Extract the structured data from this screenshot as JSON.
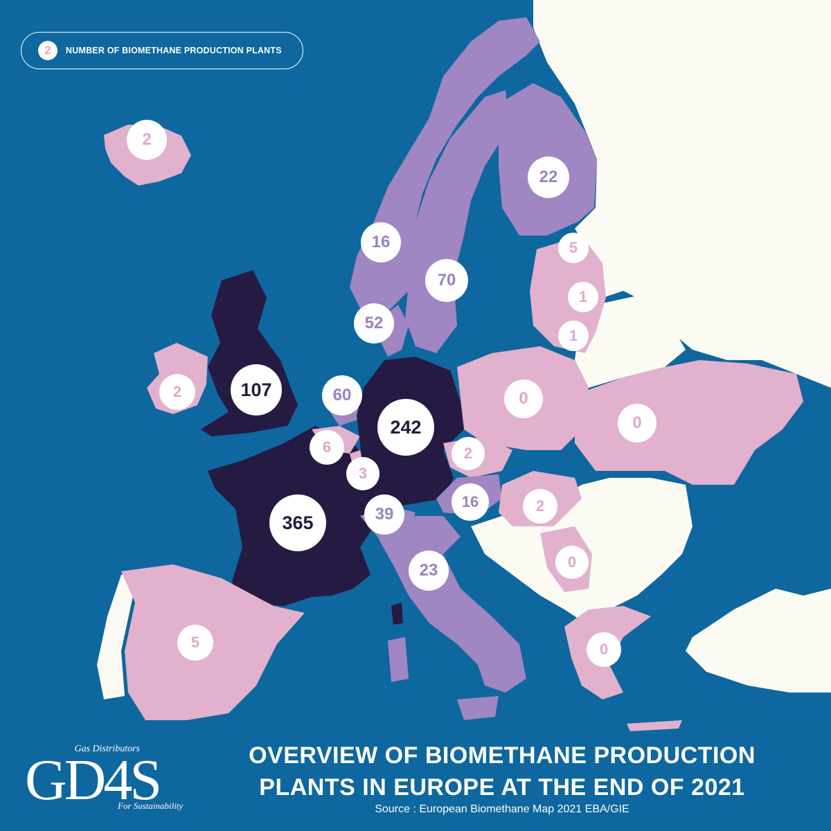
{
  "legend": {
    "sample_value": "2",
    "label": "NUMBER OF BIOMETHANE PRODUCTION PLANTS"
  },
  "title_lines": [
    "OVERVIEW OF BIOMETHANE PRODUCTION",
    "PLANTS IN EUROPE AT THE END OF 2021"
  ],
  "source": "Source : European Biomethane Map 2021 EBA/GIE",
  "logo": {
    "top_text": "Gas Distributors",
    "main_text": "GD4S",
    "bottom_text": "For Sustainability"
  },
  "colors": {
    "sea": "#0e679e",
    "no_data_land": "#fbfbf3",
    "low": "#e2b1cd",
    "mid": "#a086c2",
    "high": "#241a42",
    "low_text": "#e2a7cc",
    "mid_text": "#9a82bf",
    "high_text": "#241a42"
  },
  "regions": [
    {
      "name": "Iceland",
      "value": 2,
      "tier": "low"
    },
    {
      "name": "Ireland",
      "value": 2,
      "tier": "low"
    },
    {
      "name": "United Kingdom",
      "value": 107,
      "tier": "high"
    },
    {
      "name": "France",
      "value": 365,
      "tier": "high"
    },
    {
      "name": "Spain",
      "value": 5,
      "tier": "low"
    },
    {
      "name": "Norway",
      "value": 16,
      "tier": "mid"
    },
    {
      "name": "Sweden",
      "value": 70,
      "tier": "mid"
    },
    {
      "name": "Finland",
      "value": 22,
      "tier": "mid"
    },
    {
      "name": "Denmark",
      "value": 52,
      "tier": "mid"
    },
    {
      "name": "Netherlands",
      "value": 60,
      "tier": "mid"
    },
    {
      "name": "Germany",
      "value": 242,
      "tier": "high"
    },
    {
      "name": "Belgium",
      "value": 6,
      "tier": "low"
    },
    {
      "name": "Luxembourg",
      "value": 3,
      "tier": "low"
    },
    {
      "name": "Switzerland",
      "value": 39,
      "tier": "mid"
    },
    {
      "name": "Italy",
      "value": 23,
      "tier": "mid"
    },
    {
      "name": "Austria",
      "value": 16,
      "tier": "mid"
    },
    {
      "name": "Czechia",
      "value": 2,
      "tier": "low"
    },
    {
      "name": "Hungary",
      "value": 2,
      "tier": "low"
    },
    {
      "name": "Serbia",
      "value": 0,
      "tier": "low"
    },
    {
      "name": "Greece",
      "value": 0,
      "tier": "low"
    },
    {
      "name": "Poland",
      "value": 0,
      "tier": "low"
    },
    {
      "name": "Ukraine",
      "value": 0,
      "tier": "low"
    },
    {
      "name": "Estonia",
      "value": 5,
      "tier": "low"
    },
    {
      "name": "Latvia",
      "value": 1,
      "tier": "low"
    },
    {
      "name": "Lithuania",
      "value": 1,
      "tier": "low"
    }
  ]
}
